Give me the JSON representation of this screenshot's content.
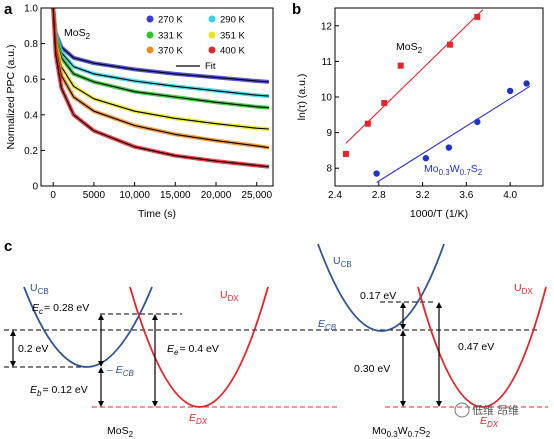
{
  "panels": {
    "a": "a",
    "b": "b",
    "c": "c"
  },
  "chart_data": [
    {
      "type": "line",
      "panel": "a",
      "ylabel": "Normalized PPC (a.u.)",
      "xlabel": "Time (s)",
      "material_label": "MoS",
      "material_sub": "2",
      "xlim": [
        -1500,
        27000
      ],
      "ylim": [
        0,
        1.0
      ],
      "x_ticks": [
        "0",
        "5000",
        "10,000",
        "15,000",
        "20,000",
        "25,000"
      ],
      "x_tick_values": [
        0,
        5000,
        10000,
        15000,
        20000,
        25000
      ],
      "y_ticks": [
        "0",
        "0.2",
        "0.4",
        "0.6",
        "0.8",
        "1.0"
      ],
      "y_tick_values": [
        0,
        0.2,
        0.4,
        0.6,
        0.8,
        1.0
      ],
      "legend": [
        {
          "label": "270 K",
          "color": "#3a3ad6"
        },
        {
          "label": "290 K",
          "color": "#33d6e6"
        },
        {
          "label": "331 K",
          "color": "#2ec42e"
        },
        {
          "label": "351 K",
          "color": "#e8e61a"
        },
        {
          "label": "370 K",
          "color": "#f08a1e"
        },
        {
          "label": "400 K",
          "color": "#e8242a"
        },
        {
          "label": "Fit",
          "color": "#000000"
        }
      ],
      "series": [
        {
          "name": "270 K",
          "color": "#3a3ad6",
          "x": [
            0,
            300,
            1000,
            2500,
            5000,
            10000,
            15000,
            20000,
            25000,
            26500
          ],
          "values": [
            1.0,
            0.86,
            0.78,
            0.72,
            0.69,
            0.655,
            0.63,
            0.61,
            0.59,
            0.585
          ]
        },
        {
          "name": "290 K",
          "color": "#33d6e6",
          "x": [
            0,
            300,
            1000,
            2500,
            5000,
            10000,
            15000,
            20000,
            25000,
            26500
          ],
          "values": [
            1.0,
            0.85,
            0.75,
            0.67,
            0.63,
            0.59,
            0.56,
            0.535,
            0.51,
            0.505
          ]
        },
        {
          "name": "331 K",
          "color": "#2ec42e",
          "x": [
            0,
            300,
            1000,
            2500,
            5000,
            10000,
            15000,
            20000,
            25000,
            26500
          ],
          "values": [
            1.0,
            0.83,
            0.72,
            0.63,
            0.585,
            0.53,
            0.5,
            0.47,
            0.445,
            0.44
          ]
        },
        {
          "name": "351 K",
          "color": "#e8e61a",
          "x": [
            0,
            300,
            1000,
            2500,
            5000,
            10000,
            15000,
            20000,
            25000,
            26500
          ],
          "values": [
            1.0,
            0.8,
            0.67,
            0.56,
            0.49,
            0.42,
            0.38,
            0.35,
            0.325,
            0.32
          ]
        },
        {
          "name": "370 K",
          "color": "#f08a1e",
          "x": [
            0,
            300,
            1000,
            2500,
            5000,
            10000,
            15000,
            20000,
            25000,
            26500
          ],
          "values": [
            1.0,
            0.78,
            0.62,
            0.5,
            0.42,
            0.34,
            0.29,
            0.255,
            0.225,
            0.215
          ]
        },
        {
          "name": "400 K",
          "color": "#e8242a",
          "x": [
            0,
            300,
            1000,
            2500,
            5000,
            10000,
            15000,
            20000,
            25000,
            26500
          ],
          "values": [
            1.0,
            0.74,
            0.55,
            0.4,
            0.31,
            0.22,
            0.17,
            0.14,
            0.115,
            0.108
          ]
        }
      ]
    },
    {
      "type": "scatter",
      "panel": "b",
      "ylabel": "ln(τ) (a.u.)",
      "xlabel": "1000/T (1/K)",
      "xlim": [
        2.4,
        4.3
      ],
      "ylim": [
        7.5,
        12.5
      ],
      "x_ticks": [
        "2.4",
        "2.8",
        "3.2",
        "3.6",
        "4.0"
      ],
      "x_tick_values": [
        2.4,
        2.8,
        3.2,
        3.6,
        4.0
      ],
      "y_ticks": [
        "8",
        "9",
        "10",
        "11",
        "12"
      ],
      "y_tick_values": [
        8,
        9,
        10,
        11,
        12
      ],
      "series": [
        {
          "name": "MoS2",
          "label_main": "MoS",
          "label_sub": "2",
          "color": "#e8242a",
          "marker": "square",
          "x": [
            2.5,
            2.7,
            2.85,
            3.0,
            3.45,
            3.7
          ],
          "values": [
            8.4,
            9.25,
            9.83,
            10.88,
            11.47,
            12.25
          ],
          "fit": {
            "x": [
              2.5,
              3.75
            ],
            "values": [
              8.7,
              12.45
            ]
          }
        },
        {
          "name": "Mo0.3W0.7S2",
          "label_main": "Mo",
          "label_sub1": "0.3",
          "label_mid": "W",
          "label_sub2": "0.7",
          "label_end": "S",
          "label_sub3": "2",
          "color": "#2233cc",
          "marker": "circle",
          "x": [
            2.78,
            3.23,
            3.44,
            3.7,
            4.0,
            4.15
          ],
          "values": [
            7.85,
            8.28,
            8.58,
            9.3,
            10.17,
            10.38
          ],
          "fit": {
            "x": [
              2.78,
              4.18
            ],
            "values": [
              7.6,
              10.3
            ]
          }
        }
      ]
    }
  ],
  "diagram": {
    "left": {
      "title_main": "MoS",
      "title_sub": "2",
      "ucb_main": "U",
      "ucb_sub": "CB",
      "udx_main": "U",
      "udx_sub": "DX",
      "ec_label": "= 0.28 eV",
      "ec_sym": "E",
      "ec_sub": "c",
      "ee_label": "= 0.4 eV",
      "ee_sym": "E",
      "ee_sub": "e",
      "eb_label": "= 0.12 eV",
      "eb_sym": "E",
      "eb_sub": "b",
      "gap_label": "0.2 eV",
      "ecb_sym": "E",
      "ecb_sub": "CB",
      "edx_sym": "E",
      "edx_sub": "DX"
    },
    "right": {
      "title_main": "Mo",
      "title_sub1": "0.3",
      "title_mid": "W",
      "title_sub2": "0.7",
      "title_end": "S",
      "title_sub3": "2",
      "ucb_main": "U",
      "ucb_sub": "CB",
      "udx_main": "U",
      "udx_sub": "DX",
      "barrier_label": "0.17 eV",
      "gap_label": "0.30 eV",
      "total_label": "0.47 eV",
      "ecb_sym": "E",
      "ecb_sub": "CB",
      "edx_sym": "E",
      "edx_sub": "DX"
    },
    "watermark": "低维 昂维"
  }
}
